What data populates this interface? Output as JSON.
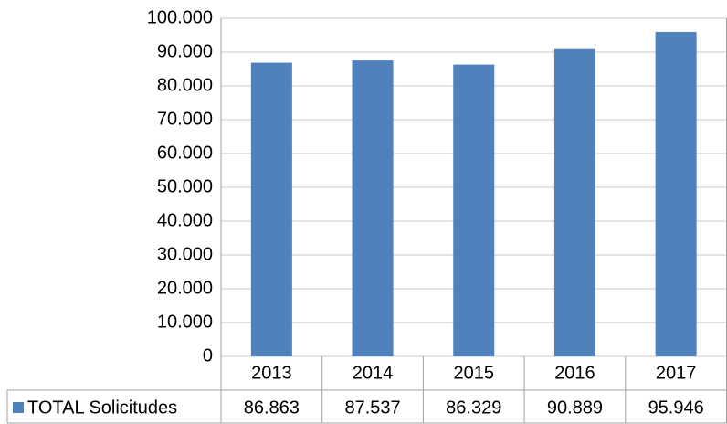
{
  "chart_data": {
    "type": "bar",
    "categories": [
      "2013",
      "2014",
      "2015",
      "2016",
      "2017"
    ],
    "series": [
      {
        "name": "TOTAL Solicitudes",
        "color": "#4f81bd",
        "values": [
          86863,
          87537,
          86329,
          90889,
          95946
        ],
        "value_labels": [
          "86.863",
          "87.537",
          "86.329",
          "90.889",
          "95.946"
        ]
      }
    ],
    "ylim": [
      0,
      100000
    ],
    "yticks": [
      0,
      {
        "value": 10000,
        "label": "10.000"
      },
      {
        "value": 20000,
        "label": "20.000"
      },
      {
        "value": 30000,
        "label": "30.000"
      },
      {
        "value": 40000,
        "label": "40.000"
      },
      {
        "value": 50000,
        "label": "50.000"
      },
      {
        "value": 60000,
        "label": "60.000"
      },
      {
        "value": 70000,
        "label": "70.000"
      },
      {
        "value": 80000,
        "label": "80.000"
      },
      {
        "value": 90000,
        "label": "90.000"
      },
      {
        "value": 100000,
        "label": "100.000"
      }
    ],
    "grid": true,
    "legend": "data-table"
  }
}
